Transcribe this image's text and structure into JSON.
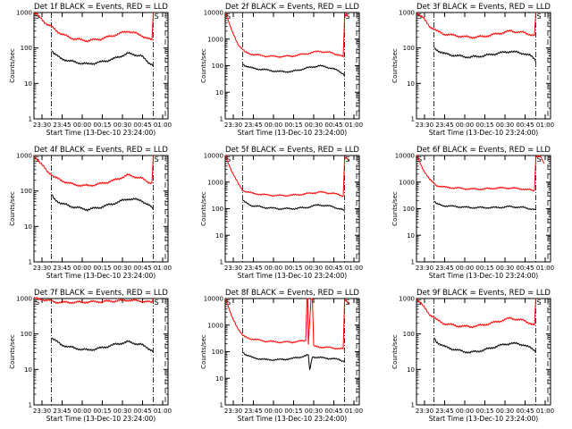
{
  "chart_data": [
    {
      "type": "line",
      "title": "Det 1f BLACK = Events, RED = LLD",
      "xlabel": "Start Time (13-Dec-10 23:24:00)",
      "ylabel": "Counts/sec",
      "ylim": [
        1,
        1000
      ],
      "y_ticks": [
        "1",
        "10",
        "100",
        "1000"
      ],
      "x_ticks": [
        "23:30",
        "23:45",
        "00:00",
        "00:15",
        "00:30",
        "00:45",
        "01:00"
      ],
      "x_range_min": [
        0,
        100
      ],
      "scale": "log",
      "grid": false,
      "annotations": [
        "S",
        "S"
      ],
      "series": [
        {
          "color": "#000000",
          "x": [
            13,
            15,
            20,
            30,
            40,
            50,
            60,
            70,
            80,
            85,
            88,
            89
          ],
          "y": [
            90,
            70,
            50,
            40,
            35,
            40,
            50,
            70,
            60,
            40,
            35,
            30
          ]
        },
        {
          "color": "#ff0000",
          "x": [
            0,
            5,
            10,
            13,
            15,
            20,
            30,
            40,
            50,
            60,
            70,
            80,
            85,
            88,
            89
          ],
          "y": [
            1000,
            700,
            450,
            400,
            350,
            250,
            180,
            160,
            180,
            230,
            300,
            230,
            180,
            170,
            1000
          ]
        }
      ]
    },
    {
      "type": "line",
      "title": "Det 2f BLACK = Events, RED = LLD",
      "xlabel": "Start Time (13-Dec-10 23:24:00)",
      "ylabel": "Counts/sec",
      "ylim": [
        1,
        10000
      ],
      "y_ticks": [
        "1",
        "10",
        "100",
        "1000",
        "10000"
      ],
      "x_ticks": [
        "23:30",
        "23:45",
        "00:00",
        "00:15",
        "00:30",
        "00:45",
        "01:00"
      ],
      "x_range_min": [
        0,
        100
      ],
      "scale": "log",
      "grid": false,
      "annotations": [
        "S",
        "S"
      ],
      "series": [
        {
          "color": "#000000",
          "x": [
            13,
            15,
            20,
            30,
            40,
            50,
            60,
            70,
            80,
            85,
            88,
            89
          ],
          "y": [
            120,
            100,
            80,
            70,
            60,
            60,
            80,
            100,
            80,
            60,
            50,
            40
          ]
        },
        {
          "color": "#ff0000",
          "x": [
            0,
            5,
            10,
            13,
            15,
            20,
            30,
            40,
            50,
            60,
            70,
            80,
            85,
            88,
            89,
            90,
            92
          ],
          "y": [
            10000,
            2000,
            600,
            400,
            320,
            270,
            230,
            220,
            230,
            280,
            350,
            300,
            250,
            220,
            6000,
            9000,
            7000
          ]
        }
      ]
    },
    {
      "type": "line",
      "title": "Det 3f BLACK = Events, RED = LLD",
      "xlabel": "Start Time (13-Dec-10 23:24:00)",
      "ylabel": "Counts/sec",
      "ylim": [
        1,
        1000
      ],
      "y_ticks": [
        "1",
        "10",
        "100",
        "1000"
      ],
      "x_ticks": [
        "23:30",
        "23:45",
        "00:00",
        "00:15",
        "00:30",
        "00:45",
        "01:00"
      ],
      "x_range_min": [
        0,
        100
      ],
      "scale": "log",
      "grid": false,
      "annotations": [
        "S",
        "S"
      ],
      "series": [
        {
          "color": "#000000",
          "x": [
            13,
            15,
            20,
            30,
            40,
            50,
            60,
            70,
            80,
            85,
            88,
            89
          ],
          "y": [
            100,
            90,
            70,
            60,
            55,
            60,
            70,
            80,
            70,
            60,
            50,
            40
          ]
        },
        {
          "color": "#ff0000",
          "x": [
            0,
            5,
            10,
            13,
            15,
            20,
            30,
            40,
            50,
            60,
            70,
            80,
            85,
            88,
            89
          ],
          "y": [
            1000,
            700,
            400,
            350,
            300,
            250,
            220,
            200,
            210,
            250,
            300,
            270,
            240,
            230,
            1000
          ]
        }
      ]
    },
    {
      "type": "line",
      "title": "Det 4f BLACK = Events, RED = LLD",
      "xlabel": "Start Time (13-Dec-10 23:24:00)",
      "ylabel": "Counts/sec",
      "ylim": [
        1,
        1000
      ],
      "y_ticks": [
        "1",
        "10",
        "100",
        "1000"
      ],
      "x_ticks": [
        "23:30",
        "23:45",
        "00:00",
        "00:15",
        "00:30",
        "00:45",
        "01:00"
      ],
      "x_range_min": [
        0,
        100
      ],
      "scale": "log",
      "grid": false,
      "annotations": [
        "S",
        "S"
      ],
      "series": [
        {
          "color": "#000000",
          "x": [
            13,
            15,
            20,
            30,
            40,
            50,
            60,
            70,
            80,
            85,
            88,
            89
          ],
          "y": [
            80,
            60,
            45,
            35,
            30,
            35,
            45,
            60,
            55,
            40,
            35,
            30
          ]
        },
        {
          "color": "#ff0000",
          "x": [
            0,
            5,
            10,
            13,
            15,
            20,
            30,
            40,
            50,
            60,
            70,
            80,
            85,
            88,
            89
          ],
          "y": [
            1000,
            600,
            350,
            300,
            250,
            200,
            150,
            140,
            160,
            200,
            280,
            230,
            180,
            170,
            1000
          ]
        }
      ]
    },
    {
      "type": "line",
      "title": "Det 5f BLACK = Events, RED = LLD",
      "xlabel": "Start Time (13-Dec-10 23:24:00)",
      "ylabel": "Counts/sec",
      "ylim": [
        1,
        10000
      ],
      "y_ticks": [
        "1",
        "10",
        "100",
        "1000",
        "10000"
      ],
      "x_ticks": [
        "23:30",
        "23:45",
        "00:00",
        "00:15",
        "00:30",
        "00:45",
        "01:00"
      ],
      "x_range_min": [
        0,
        100
      ],
      "scale": "log",
      "grid": false,
      "annotations": [
        "S",
        "S"
      ],
      "series": [
        {
          "color": "#000000",
          "x": [
            13,
            15,
            20,
            30,
            40,
            50,
            60,
            70,
            80,
            85,
            88,
            89
          ],
          "y": [
            200,
            170,
            130,
            110,
            100,
            100,
            110,
            140,
            120,
            100,
            90,
            80
          ]
        },
        {
          "color": "#ff0000",
          "x": [
            0,
            5,
            10,
            13,
            15,
            20,
            30,
            40,
            50,
            60,
            70,
            80,
            85,
            88,
            89,
            90,
            92
          ],
          "y": [
            10000,
            2500,
            800,
            500,
            450,
            380,
            330,
            310,
            320,
            360,
            420,
            380,
            330,
            300,
            7000,
            9000,
            6000
          ]
        }
      ]
    },
    {
      "type": "line",
      "title": "Det 6f BLACK = Events, RED = LLD",
      "xlabel": "Start Time (13-Dec-10 23:24:00)",
      "ylabel": "Counts/sec",
      "ylim": [
        1,
        10000
      ],
      "y_ticks": [
        "1",
        "10",
        "100",
        "1000",
        "10000"
      ],
      "x_ticks": [
        "23:30",
        "23:45",
        "00:00",
        "00:15",
        "00:30",
        "00:45",
        "01:00"
      ],
      "x_range_min": [
        0,
        100
      ],
      "scale": "log",
      "grid": false,
      "annotations": [
        "S",
        "S"
      ],
      "series": [
        {
          "color": "#000000",
          "x": [
            13,
            15,
            20,
            30,
            40,
            50,
            60,
            70,
            80,
            85,
            88,
            89
          ],
          "y": [
            200,
            150,
            130,
            120,
            110,
            110,
            110,
            120,
            110,
            100,
            95,
            90
          ]
        },
        {
          "color": "#ff0000",
          "x": [
            0,
            5,
            10,
            13,
            15,
            20,
            30,
            40,
            50,
            60,
            70,
            80,
            85,
            88,
            89,
            92,
            95
          ],
          "y": [
            10000,
            3000,
            1200,
            900,
            750,
            650,
            600,
            550,
            550,
            600,
            600,
            550,
            500,
            480,
            9000,
            10000,
            5000
          ]
        }
      ]
    },
    {
      "type": "line",
      "title": "Det 7f BLACK = Events, RED = LLD",
      "xlabel": "Start Time (13-Dec-10 23:24:00)",
      "ylabel": "Counts/sec",
      "ylim": [
        1,
        1000
      ],
      "y_ticks": [
        "1",
        "10",
        "100",
        "1000"
      ],
      "x_ticks": [
        "23:30",
        "23:45",
        "00:00",
        "00:15",
        "00:30",
        "00:45",
        "01:00"
      ],
      "x_range_min": [
        0,
        100
      ],
      "scale": "log",
      "grid": false,
      "annotations": [
        "S",
        "S"
      ],
      "series": [
        {
          "color": "#000000",
          "x": [
            13,
            15,
            20,
            30,
            40,
            50,
            60,
            70,
            80,
            85,
            88,
            89
          ],
          "y": [
            80,
            70,
            50,
            40,
            35,
            40,
            50,
            60,
            50,
            40,
            35,
            30
          ]
        },
        {
          "color": "#ff0000",
          "x": [
            0,
            5,
            10,
            13,
            15,
            20,
            30,
            40,
            50,
            60,
            70,
            80,
            85,
            88,
            89
          ],
          "y": [
            1000,
            950,
            900,
            850,
            800,
            780,
            780,
            800,
            820,
            850,
            900,
            850,
            800,
            780,
            1000
          ]
        }
      ]
    },
    {
      "type": "line",
      "title": "Det 8f BLACK = Events, RED = LLD",
      "xlabel": "Start Time (13-Dec-10 23:24:00)",
      "ylabel": "Counts/sec",
      "ylim": [
        1,
        10000
      ],
      "y_ticks": [
        "1",
        "10",
        "100",
        "1000",
        "10000"
      ],
      "x_ticks": [
        "23:30",
        "23:45",
        "00:00",
        "00:15",
        "00:30",
        "00:45",
        "01:00"
      ],
      "x_range_min": [
        0,
        100
      ],
      "scale": "log",
      "grid": false,
      "annotations": [
        "S",
        "S"
      ],
      "series": [
        {
          "color": "#000000",
          "x": [
            13,
            15,
            20,
            30,
            40,
            50,
            60,
            62,
            63,
            65,
            70,
            80,
            85,
            88,
            89
          ],
          "y": [
            100,
            80,
            60,
            50,
            50,
            55,
            70,
            75,
            20,
            65,
            60,
            55,
            50,
            45,
            40
          ]
        },
        {
          "color": "#ff0000",
          "x": [
            0,
            5,
            10,
            13,
            15,
            20,
            30,
            40,
            50,
            60,
            61,
            61.5,
            62,
            64,
            65,
            66,
            70,
            80,
            85,
            88,
            89,
            90,
            92
          ],
          "y": [
            10000,
            2000,
            700,
            400,
            350,
            300,
            250,
            230,
            230,
            260,
            10000,
            10000,
            200,
            10000,
            10000,
            160,
            150,
            140,
            130,
            130,
            8000,
            9000,
            6000
          ]
        }
      ]
    },
    {
      "type": "line",
      "title": "Det 9f BLACK = Events, RED = LLD",
      "xlabel": "Start Time (13-Dec-10 23:24:00)",
      "ylabel": "Counts/sec",
      "ylim": [
        1,
        1000
      ],
      "y_ticks": [
        "1",
        "10",
        "100",
        "1000"
      ],
      "x_ticks": [
        "23:30",
        "23:45",
        "00:00",
        "00:15",
        "00:30",
        "00:45",
        "01:00"
      ],
      "x_range_min": [
        0,
        100
      ],
      "scale": "log",
      "grid": false,
      "annotations": [
        "S",
        "S"
      ],
      "series": [
        {
          "color": "#000000",
          "x": [
            13,
            15,
            20,
            30,
            40,
            50,
            60,
            70,
            80,
            85,
            88,
            89
          ],
          "y": [
            80,
            60,
            45,
            35,
            30,
            35,
            45,
            55,
            50,
            40,
            35,
            30
          ]
        },
        {
          "color": "#ff0000",
          "x": [
            0,
            5,
            10,
            13,
            15,
            20,
            30,
            40,
            50,
            60,
            70,
            80,
            85,
            88,
            89
          ],
          "y": [
            1000,
            600,
            350,
            300,
            250,
            200,
            170,
            160,
            180,
            220,
            280,
            240,
            200,
            180,
            1000
          ]
        }
      ]
    }
  ]
}
